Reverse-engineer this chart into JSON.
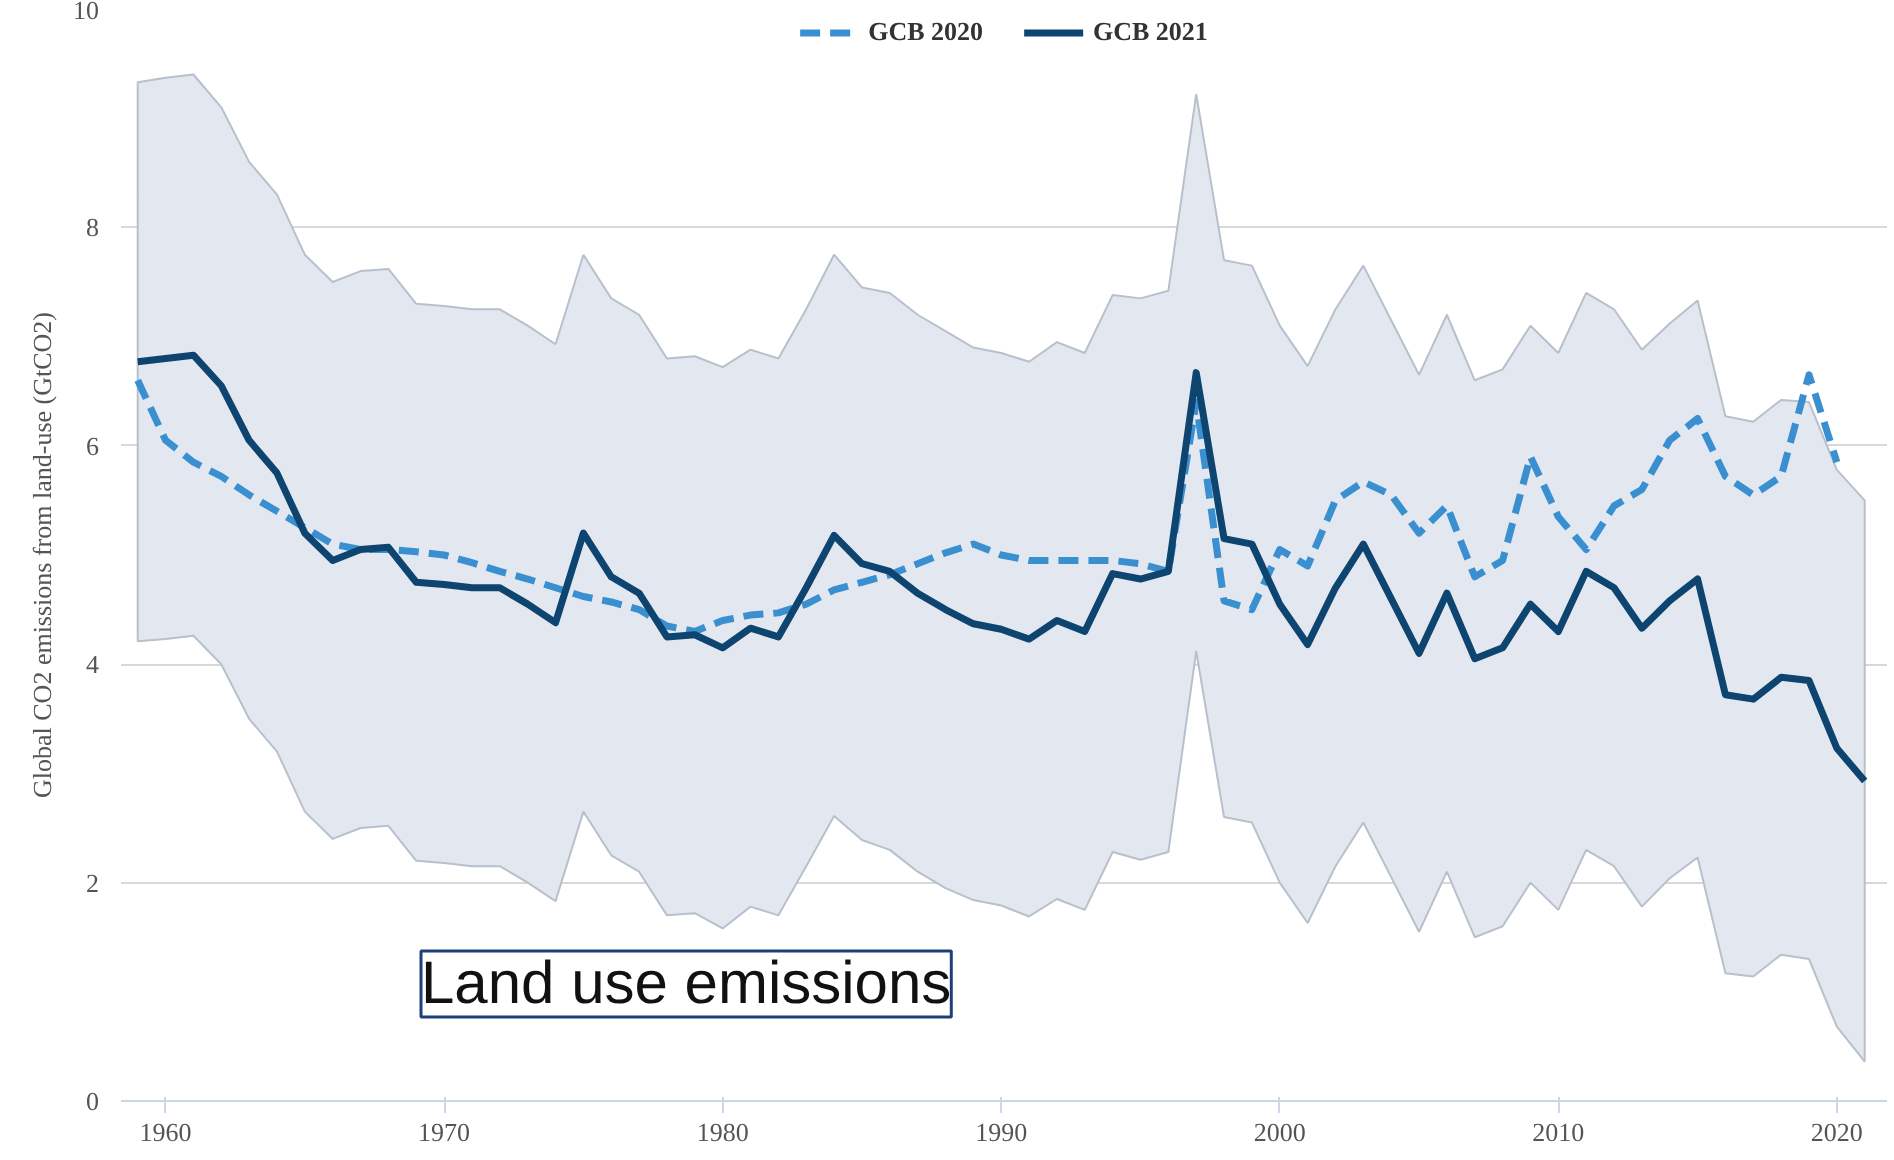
{
  "chart_data": {
    "type": "line",
    "ylabel": "Global CO2 emissions from land-use (GtCO2)",
    "x": [
      1959,
      1960,
      1961,
      1962,
      1963,
      1964,
      1965,
      1966,
      1967,
      1968,
      1969,
      1970,
      1971,
      1972,
      1973,
      1974,
      1975,
      1976,
      1977,
      1978,
      1979,
      1980,
      1981,
      1982,
      1983,
      1984,
      1985,
      1986,
      1987,
      1988,
      1989,
      1990,
      1991,
      1992,
      1993,
      1994,
      1995,
      1996,
      1997,
      1998,
      1999,
      2000,
      2001,
      2002,
      2003,
      2004,
      2005,
      2006,
      2007,
      2008,
      2009,
      2010,
      2011,
      2012,
      2013,
      2014,
      2015,
      2016,
      2017,
      2018,
      2019,
      2020,
      2021
    ],
    "series": [
      {
        "name": "GCB 2020",
        "color": "#3a8fd0",
        "line_style": "dashed",
        "x": [
          1959,
          1960,
          1961,
          1962,
          1963,
          1964,
          1965,
          1966,
          1967,
          1968,
          1969,
          1970,
          1971,
          1972,
          1973,
          1974,
          1975,
          1976,
          1977,
          1978,
          1979,
          1980,
          1981,
          1982,
          1983,
          1984,
          1985,
          1986,
          1987,
          1988,
          1989,
          1990,
          1991,
          1992,
          1993,
          1994,
          1995,
          1996,
          1997,
          1998,
          1999,
          2000,
          2001,
          2002,
          2003,
          2004,
          2005,
          2006,
          2007,
          2008,
          2009,
          2010,
          2011,
          2012,
          2013,
          2014,
          2015,
          2016,
          2017,
          2018,
          2019,
          2020
        ],
        "values": [
          6.6,
          6.05,
          5.85,
          5.72,
          5.55,
          5.4,
          5.25,
          5.1,
          5.05,
          5.05,
          5.03,
          5.0,
          4.93,
          4.85,
          4.78,
          4.7,
          4.62,
          4.57,
          4.5,
          4.35,
          4.3,
          4.4,
          4.45,
          4.47,
          4.55,
          4.68,
          4.75,
          4.82,
          4.92,
          5.02,
          5.1,
          5.0,
          4.95,
          4.95,
          4.95,
          4.95,
          4.92,
          4.85,
          6.4,
          4.58,
          4.5,
          5.05,
          4.9,
          5.5,
          5.67,
          5.55,
          5.2,
          5.45,
          4.8,
          4.95,
          5.9,
          5.35,
          5.05,
          5.45,
          5.6,
          6.05,
          6.25,
          5.72,
          5.55,
          5.72,
          6.65,
          5.85
        ]
      },
      {
        "name": "GCB 2021",
        "color": "#0e4470",
        "line_style": "solid",
        "values": [
          6.77,
          6.8,
          6.83,
          6.55,
          6.05,
          5.75,
          5.2,
          4.95,
          5.05,
          5.07,
          4.75,
          4.73,
          4.7,
          4.7,
          4.55,
          4.38,
          5.2,
          4.8,
          4.65,
          4.25,
          4.27,
          4.15,
          4.33,
          4.25,
          4.7,
          5.18,
          4.92,
          4.85,
          4.65,
          4.5,
          4.37,
          4.32,
          4.23,
          4.4,
          4.3,
          4.83,
          4.78,
          4.85,
          6.67,
          5.15,
          5.1,
          4.55,
          4.18,
          4.7,
          5.1,
          4.6,
          4.1,
          4.65,
          4.05,
          4.15,
          4.55,
          4.3,
          4.85,
          4.7,
          4.33,
          4.58,
          4.78,
          3.72,
          3.68,
          3.88,
          3.85,
          3.23,
          2.93
        ],
        "upper": [
          9.33,
          9.37,
          9.4,
          9.1,
          8.6,
          8.3,
          7.75,
          7.5,
          7.6,
          7.62,
          7.3,
          7.28,
          7.25,
          7.25,
          7.1,
          6.93,
          7.75,
          7.35,
          7.2,
          6.8,
          6.82,
          6.72,
          6.88,
          6.8,
          7.25,
          7.75,
          7.45,
          7.4,
          7.2,
          7.05,
          6.9,
          6.85,
          6.77,
          6.95,
          6.85,
          7.38,
          7.35,
          7.42,
          9.22,
          7.7,
          7.65,
          7.1,
          6.73,
          7.25,
          7.65,
          7.15,
          6.65,
          7.2,
          6.6,
          6.7,
          7.1,
          6.85,
          7.4,
          7.25,
          6.88,
          7.12,
          7.33,
          6.27,
          6.22,
          6.42,
          6.4,
          5.78,
          5.5
        ],
        "lower": [
          4.21,
          4.23,
          4.26,
          4.0,
          3.5,
          3.2,
          2.65,
          2.4,
          2.5,
          2.52,
          2.2,
          2.18,
          2.15,
          2.15,
          2.0,
          1.83,
          2.65,
          2.25,
          2.1,
          1.7,
          1.72,
          1.58,
          1.78,
          1.7,
          2.15,
          2.61,
          2.39,
          2.3,
          2.1,
          1.95,
          1.84,
          1.79,
          1.69,
          1.85,
          1.75,
          2.28,
          2.21,
          2.28,
          4.12,
          2.6,
          2.55,
          2.0,
          1.63,
          2.15,
          2.55,
          2.05,
          1.55,
          2.1,
          1.5,
          1.6,
          2.0,
          1.75,
          2.3,
          2.15,
          1.78,
          2.04,
          2.23,
          1.17,
          1.14,
          1.34,
          1.3,
          0.68,
          0.36
        ]
      }
    ],
    "xlim": [
      1958.4,
      2021.8
    ],
    "xticks": [
      1960,
      1970,
      1980,
      1990,
      2000,
      2010,
      2020
    ],
    "ylim": [
      0,
      10
    ],
    "yticks": [
      0,
      2,
      4,
      6,
      8,
      10
    ],
    "grid": "y",
    "legend": "top",
    "marker": "none",
    "annotations": [
      "Land use emissions"
    ]
  }
}
